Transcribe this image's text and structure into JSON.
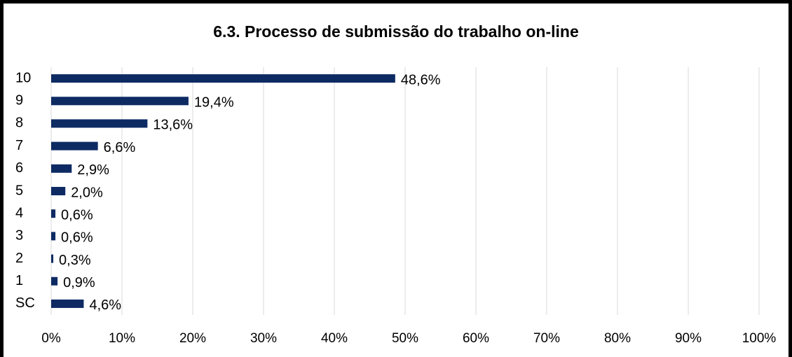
{
  "chart_data": {
    "type": "bar",
    "orientation": "horizontal",
    "title": "6.3. Processo de submissão do trabalho on-line",
    "categories": [
      "10",
      "9",
      "8",
      "7",
      "6",
      "5",
      "4",
      "3",
      "2",
      "1",
      "SC"
    ],
    "values": [
      48.6,
      19.4,
      13.6,
      6.6,
      2.9,
      2.0,
      0.6,
      0.6,
      0.3,
      0.9,
      4.6
    ],
    "value_labels": [
      "48,6%",
      "19,4%",
      "13,6%",
      "6,6%",
      "2,9%",
      "2,0%",
      "0,6%",
      "0,6%",
      "0,3%",
      "0,9%",
      "4,6%"
    ],
    "color": "#0d2a63",
    "xlim": [
      0,
      100
    ],
    "xticks": [
      {
        "value": 0,
        "label": "0%"
      },
      {
        "value": 10,
        "label": "10%"
      },
      {
        "value": 20,
        "label": "20%"
      },
      {
        "value": 30,
        "label": "30%"
      },
      {
        "value": 40,
        "label": "40%"
      },
      {
        "value": 50,
        "label": "50%"
      },
      {
        "value": 60,
        "label": "60%"
      },
      {
        "value": 70,
        "label": "70%"
      },
      {
        "value": 80,
        "label": "80%"
      },
      {
        "value": 90,
        "label": "90%"
      },
      {
        "value": 100,
        "label": "100%"
      }
    ],
    "grid": true
  }
}
